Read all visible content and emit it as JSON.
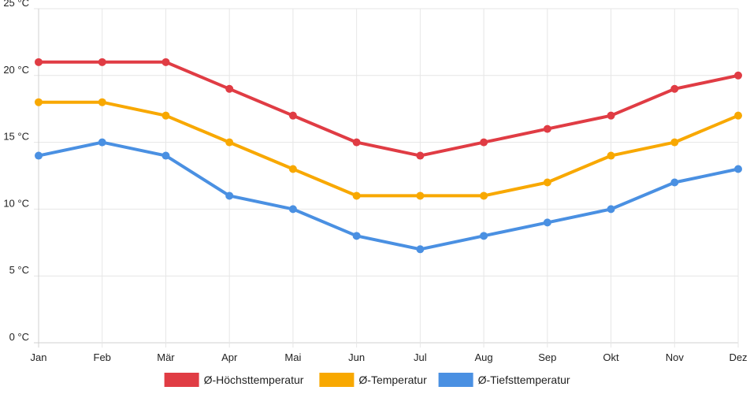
{
  "chart_data": {
    "type": "line",
    "title": "",
    "xlabel": "",
    "ylabel": "",
    "categories": [
      "Jan",
      "Feb",
      "Mär",
      "Apr",
      "Mai",
      "Jun",
      "Jul",
      "Aug",
      "Sep",
      "Okt",
      "Nov",
      "Dez"
    ],
    "ylim": [
      0,
      25
    ],
    "yticks": [
      0,
      5,
      10,
      15,
      20,
      25
    ],
    "yunit": " °C",
    "grid": true,
    "legend_position": "bottom-center",
    "series": [
      {
        "name": "Ø-Höchsttemperatur",
        "color": "#e03c44",
        "values": [
          21,
          21,
          21,
          19,
          17,
          15,
          14,
          15,
          16,
          17,
          19,
          20
        ]
      },
      {
        "name": "Ø-Temperatur",
        "color": "#f8a800",
        "values": [
          18,
          18,
          17,
          15,
          13,
          11,
          11,
          11,
          12,
          14,
          15,
          17
        ]
      },
      {
        "name": "Ø-Tiefsttemperatur",
        "color": "#4a90e2",
        "values": [
          14,
          15,
          14,
          11,
          10,
          8,
          7,
          8,
          9,
          10,
          12,
          13
        ]
      }
    ]
  }
}
